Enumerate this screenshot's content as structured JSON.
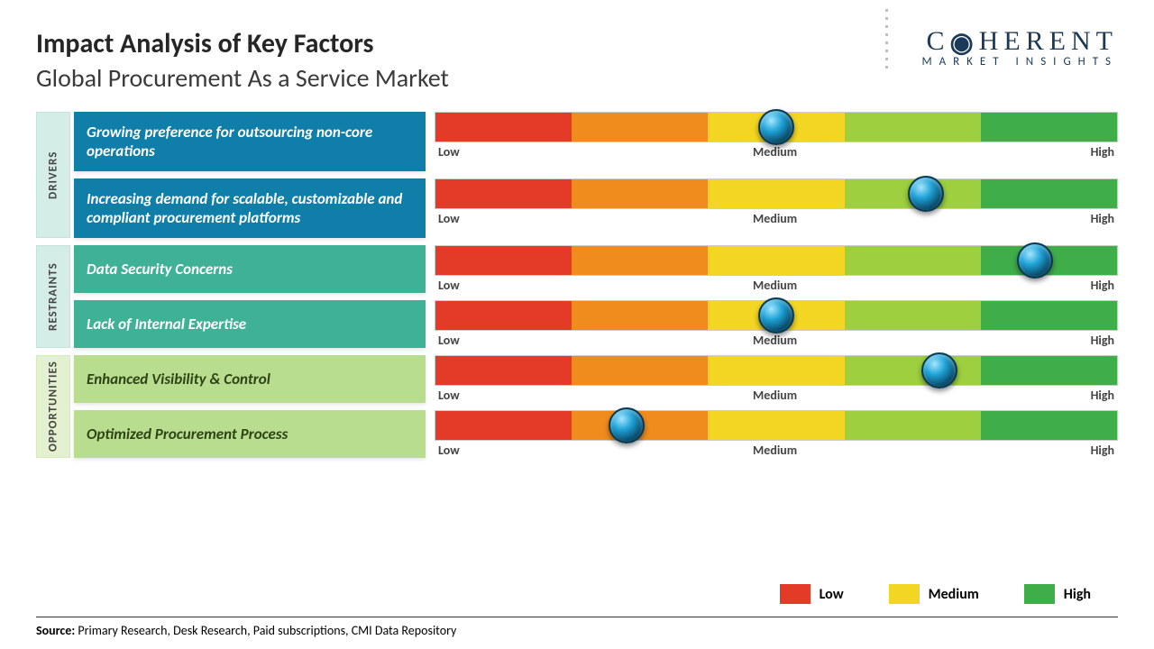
{
  "header": {
    "title": "Impact Analysis of Key Factors",
    "subtitle": "Global Procurement As a Service Market"
  },
  "logo": {
    "main": "C   HERENT",
    "sub": "MARKET INSIGHTS"
  },
  "slider": {
    "segments": [
      {
        "color": "#e43a28"
      },
      {
        "color": "#f08c1e"
      },
      {
        "color": "#f3d622"
      },
      {
        "color": "#9dcf3e"
      },
      {
        "color": "#3fae49"
      }
    ],
    "marks": {
      "low": "Low",
      "medium": "Medium",
      "high": "High"
    }
  },
  "categories": [
    {
      "key": "drivers",
      "label": "DRIVERS",
      "label_bg": "#d4ede6",
      "box_bg": "#0f7ea8",
      "box_text": "#ffffff",
      "factors": [
        {
          "text": "Growing preference for outsourcing non-core operations",
          "position_pct": 50
        },
        {
          "text": "Increasing demand for scalable, customizable and compliant procurement platforms",
          "position_pct": 72
        }
      ]
    },
    {
      "key": "restraints",
      "label": "RESTRAINTS",
      "label_bg": "#d4ede6",
      "box_bg": "#3fb197",
      "box_text": "#ffffff",
      "factors": [
        {
          "text": "Data Security Concerns",
          "position_pct": 88
        },
        {
          "text": "Lack of Internal Expertise",
          "position_pct": 50
        }
      ]
    },
    {
      "key": "opportunities",
      "label": "OPPORTUNITIES",
      "label_bg": "#e3f1d0",
      "box_bg": "#b9dd8e",
      "box_text": "#2c4416",
      "factors": [
        {
          "text": "Enhanced Visibility & Control",
          "position_pct": 74
        },
        {
          "text": "Optimized Procurement Process",
          "position_pct": 28
        }
      ]
    }
  ],
  "legend": {
    "items": [
      {
        "label": "Low",
        "color": "#e43a28"
      },
      {
        "label": "Medium",
        "color": "#f3d622"
      },
      {
        "label": "High",
        "color": "#3fae49"
      }
    ]
  },
  "source": {
    "prefix": "Source:",
    "text": " Primary Research, Desk Research, Paid subscriptions, CMI Data Repository"
  }
}
